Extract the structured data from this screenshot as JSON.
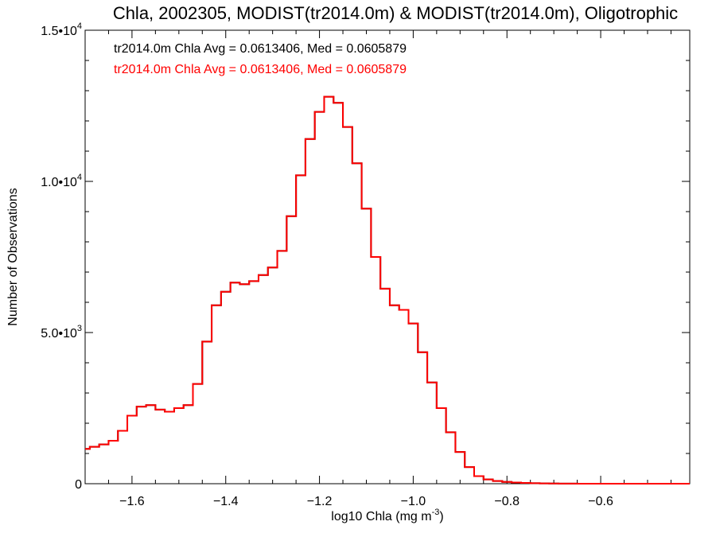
{
  "chart_data": {
    "type": "line",
    "title": "Chla, 2002305, MODIST(tr2014.0m) & MODIST(tr2014.0m), Oligotrophic",
    "xlabel": "log10 Chla (mg m",
    "xlabel_unit_exponent": "-3",
    "xlabel_suffix": ")",
    "ylabel": "Number of Observations",
    "xlim": [
      -1.7,
      -0.41
    ],
    "ylim": [
      0,
      15000
    ],
    "x_ticks": [
      -1.6,
      -1.4,
      -1.2,
      -1.0,
      -0.8,
      -0.6
    ],
    "x_tick_labels": [
      "−1.6",
      "−1.4",
      "−1.2",
      "−1.0",
      "−0.8",
      "−0.6"
    ],
    "y_ticks": [
      0,
      5000,
      10000,
      15000
    ],
    "y_tick_labels": [
      {
        "mantissa": "0",
        "exponent": ""
      },
      {
        "mantissa": "5.0•10",
        "exponent": "3"
      },
      {
        "mantissa": "1.0•10",
        "exponent": "4"
      },
      {
        "mantissa": "1.5•10",
        "exponent": "4"
      }
    ],
    "legend_placement": "top-left",
    "grid": false,
    "series": [
      {
        "name": "tr2014.0m Chla Avg = 0.0613406, Med = 0.0605879",
        "color": "#000000",
        "x": [
          -1.7,
          -1.68,
          -1.66,
          -1.64,
          -1.62,
          -1.6,
          -1.58,
          -1.56,
          -1.54,
          -1.52,
          -1.5,
          -1.48,
          -1.46,
          -1.44,
          -1.42,
          -1.4,
          -1.38,
          -1.36,
          -1.34,
          -1.32,
          -1.3,
          -1.28,
          -1.26,
          -1.24,
          -1.22,
          -1.2,
          -1.18,
          -1.16,
          -1.14,
          -1.12,
          -1.1,
          -1.08,
          -1.06,
          -1.04,
          -1.02,
          -1.0,
          -0.98,
          -0.96,
          -0.94,
          -0.92,
          -0.9,
          -0.88,
          -0.86,
          -0.84,
          -0.82,
          -0.8,
          -0.78,
          -0.76,
          -0.74,
          -0.72,
          -0.7,
          -0.68,
          -0.66,
          -0.64,
          -0.62,
          -0.6,
          -0.58,
          -0.56,
          -0.54,
          -0.52,
          -0.5,
          -0.48,
          -0.46,
          -0.44,
          -0.42
        ],
        "values": [
          1150,
          1220,
          1300,
          1420,
          1750,
          2250,
          2550,
          2600,
          2450,
          2380,
          2500,
          2600,
          3300,
          4700,
          5900,
          6350,
          6650,
          6600,
          6700,
          6900,
          7150,
          7700,
          8850,
          10200,
          11400,
          12300,
          12800,
          12600,
          11800,
          10600,
          9100,
          7500,
          6450,
          5900,
          5750,
          5300,
          4350,
          3350,
          2500,
          1700,
          1050,
          550,
          250,
          140,
          90,
          60,
          40,
          25,
          15,
          10,
          6,
          3,
          2,
          1,
          1,
          0,
          0,
          0,
          0,
          0,
          0,
          0,
          0,
          0,
          0
        ]
      },
      {
        "name": "tr2014.0m Chla Avg = 0.0613406, Med = 0.0605879",
        "color": "#ff0000",
        "x": [
          -1.7,
          -1.68,
          -1.66,
          -1.64,
          -1.62,
          -1.6,
          -1.58,
          -1.56,
          -1.54,
          -1.52,
          -1.5,
          -1.48,
          -1.46,
          -1.44,
          -1.42,
          -1.4,
          -1.38,
          -1.36,
          -1.34,
          -1.32,
          -1.3,
          -1.28,
          -1.26,
          -1.24,
          -1.22,
          -1.2,
          -1.18,
          -1.16,
          -1.14,
          -1.12,
          -1.1,
          -1.08,
          -1.06,
          -1.04,
          -1.02,
          -1.0,
          -0.98,
          -0.96,
          -0.94,
          -0.92,
          -0.9,
          -0.88,
          -0.86,
          -0.84,
          -0.82,
          -0.8,
          -0.78,
          -0.76,
          -0.74,
          -0.72,
          -0.7,
          -0.68,
          -0.66,
          -0.64,
          -0.62,
          -0.6,
          -0.58,
          -0.56,
          -0.54,
          -0.52,
          -0.5,
          -0.48,
          -0.46,
          -0.44,
          -0.42
        ],
        "values": [
          1150,
          1220,
          1300,
          1420,
          1750,
          2250,
          2550,
          2600,
          2450,
          2380,
          2500,
          2600,
          3300,
          4700,
          5900,
          6350,
          6650,
          6600,
          6700,
          6900,
          7150,
          7700,
          8850,
          10200,
          11400,
          12300,
          12800,
          12600,
          11800,
          10600,
          9100,
          7500,
          6450,
          5900,
          5750,
          5300,
          4350,
          3350,
          2500,
          1700,
          1050,
          550,
          250,
          140,
          90,
          60,
          40,
          25,
          15,
          10,
          6,
          3,
          2,
          1,
          1,
          0,
          0,
          0,
          0,
          0,
          0,
          0,
          0,
          0,
          0
        ]
      }
    ]
  }
}
